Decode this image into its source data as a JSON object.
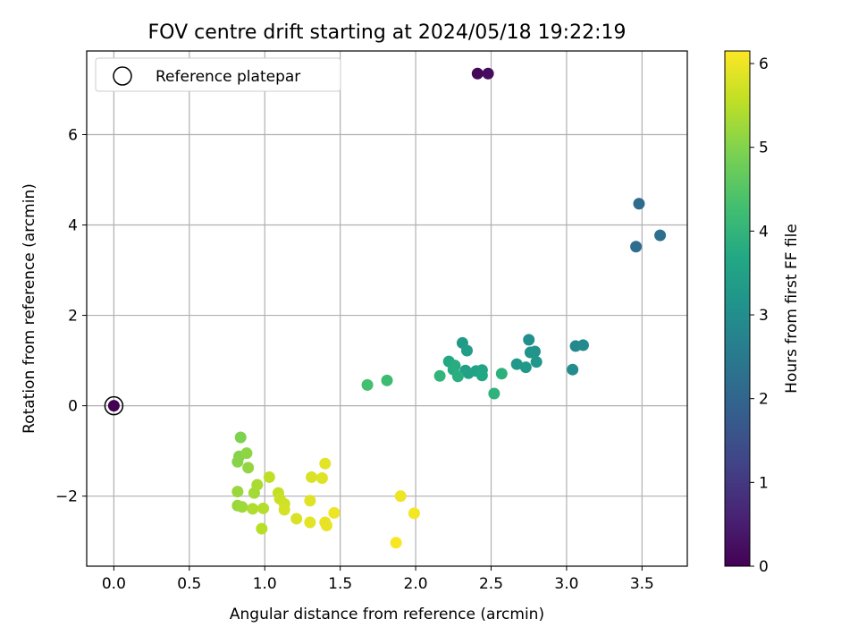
{
  "chart_data": {
    "type": "scatter",
    "title": "FOV centre drift starting at 2024/05/18 19:22:19",
    "xlabel": "Angular distance from reference (arcmin)",
    "ylabel": "Rotation from reference (arcmin)",
    "xlim": [
      -0.18,
      3.8
    ],
    "ylim": [
      -3.55,
      7.85
    ],
    "xticks": [
      0.0,
      0.5,
      1.0,
      1.5,
      2.0,
      2.5,
      3.0,
      3.5
    ],
    "xtick_labels": [
      "0.0",
      "0.5",
      "1.0",
      "1.5",
      "2.0",
      "2.5",
      "3.0",
      "3.5"
    ],
    "yticks": [
      -2,
      0,
      2,
      4,
      6
    ],
    "ytick_labels": [
      "−2",
      "0",
      "2",
      "4",
      "6"
    ],
    "grid": true,
    "legend": {
      "placement": "top-left",
      "entries": [
        "Reference platepar"
      ]
    },
    "reference_point": {
      "x": 0.0,
      "y": 0.0,
      "label": "Reference platepar"
    },
    "colorbar": {
      "label": "Hours from first FF file",
      "colormap": "viridis",
      "range": [
        0,
        6.15
      ],
      "ticks": [
        0,
        1,
        2,
        3,
        4,
        5,
        6
      ],
      "tick_labels": [
        "0",
        "1",
        "2",
        "3",
        "4",
        "5",
        "6"
      ]
    },
    "points": [
      {
        "x": 0.0,
        "y": 0.0,
        "c": 0.0
      },
      {
        "x": 2.41,
        "y": 7.35,
        "c": 0.1
      },
      {
        "x": 2.48,
        "y": 7.35,
        "c": 0.2
      },
      {
        "x": 3.48,
        "y": 4.47,
        "c": 2.15
      },
      {
        "x": 3.46,
        "y": 3.52,
        "c": 2.2
      },
      {
        "x": 3.62,
        "y": 3.77,
        "c": 2.25
      },
      {
        "x": 3.06,
        "y": 1.32,
        "c": 2.85
      },
      {
        "x": 3.11,
        "y": 1.34,
        "c": 2.9
      },
      {
        "x": 3.04,
        "y": 0.8,
        "c": 2.95
      },
      {
        "x": 2.75,
        "y": 1.46,
        "c": 3.05
      },
      {
        "x": 2.76,
        "y": 1.18,
        "c": 3.1
      },
      {
        "x": 2.79,
        "y": 1.2,
        "c": 3.15
      },
      {
        "x": 2.8,
        "y": 0.97,
        "c": 3.2
      },
      {
        "x": 2.67,
        "y": 0.92,
        "c": 3.25
      },
      {
        "x": 2.73,
        "y": 0.85,
        "c": 3.3
      },
      {
        "x": 2.31,
        "y": 1.39,
        "c": 3.35
      },
      {
        "x": 2.34,
        "y": 1.22,
        "c": 3.4
      },
      {
        "x": 2.33,
        "y": 0.78,
        "c": 3.45
      },
      {
        "x": 2.35,
        "y": 0.72,
        "c": 3.5
      },
      {
        "x": 2.4,
        "y": 0.77,
        "c": 3.55
      },
      {
        "x": 2.44,
        "y": 0.79,
        "c": 3.6
      },
      {
        "x": 2.44,
        "y": 0.67,
        "c": 3.65
      },
      {
        "x": 2.22,
        "y": 0.98,
        "c": 3.7
      },
      {
        "x": 2.25,
        "y": 0.8,
        "c": 3.75
      },
      {
        "x": 2.26,
        "y": 0.89,
        "c": 3.8
      },
      {
        "x": 2.28,
        "y": 0.65,
        "c": 3.85
      },
      {
        "x": 2.57,
        "y": 0.71,
        "c": 3.9
      },
      {
        "x": 2.52,
        "y": 0.27,
        "c": 3.95
      },
      {
        "x": 2.16,
        "y": 0.66,
        "c": 4.0
      },
      {
        "x": 1.81,
        "y": 0.56,
        "c": 4.2
      },
      {
        "x": 1.68,
        "y": 0.46,
        "c": 4.3
      },
      {
        "x": 0.84,
        "y": -0.7,
        "c": 4.95
      },
      {
        "x": 0.83,
        "y": -1.12,
        "c": 5.0
      },
      {
        "x": 0.82,
        "y": -1.24,
        "c": 5.05
      },
      {
        "x": 0.88,
        "y": -1.05,
        "c": 5.1
      },
      {
        "x": 0.89,
        "y": -1.37,
        "c": 5.15
      },
      {
        "x": 0.82,
        "y": -1.9,
        "c": 5.2
      },
      {
        "x": 0.82,
        "y": -2.21,
        "c": 5.2
      },
      {
        "x": 0.85,
        "y": -2.24,
        "c": 5.25
      },
      {
        "x": 0.93,
        "y": -1.93,
        "c": 5.3
      },
      {
        "x": 0.95,
        "y": -1.75,
        "c": 5.35
      },
      {
        "x": 0.92,
        "y": -2.28,
        "c": 5.4
      },
      {
        "x": 0.99,
        "y": -2.27,
        "c": 5.45
      },
      {
        "x": 0.98,
        "y": -2.72,
        "c": 5.5
      },
      {
        "x": 1.03,
        "y": -1.58,
        "c": 5.55
      },
      {
        "x": 1.09,
        "y": -1.93,
        "c": 5.6
      },
      {
        "x": 1.1,
        "y": -2.06,
        "c": 5.65
      },
      {
        "x": 1.13,
        "y": -2.17,
        "c": 5.7
      },
      {
        "x": 1.13,
        "y": -2.3,
        "c": 5.75
      },
      {
        "x": 1.21,
        "y": -2.5,
        "c": 5.8
      },
      {
        "x": 1.31,
        "y": -1.58,
        "c": 5.8
      },
      {
        "x": 1.3,
        "y": -2.1,
        "c": 5.85
      },
      {
        "x": 1.38,
        "y": -1.6,
        "c": 5.85
      },
      {
        "x": 1.3,
        "y": -2.58,
        "c": 5.9
      },
      {
        "x": 1.4,
        "y": -1.28,
        "c": 5.9
      },
      {
        "x": 1.4,
        "y": -2.58,
        "c": 5.95
      },
      {
        "x": 1.41,
        "y": -2.65,
        "c": 5.95
      },
      {
        "x": 1.46,
        "y": -2.37,
        "c": 6.0
      },
      {
        "x": 1.9,
        "y": -2.0,
        "c": 6.0
      },
      {
        "x": 1.99,
        "y": -2.38,
        "c": 6.05
      },
      {
        "x": 1.87,
        "y": -3.03,
        "c": 6.1
      }
    ]
  }
}
